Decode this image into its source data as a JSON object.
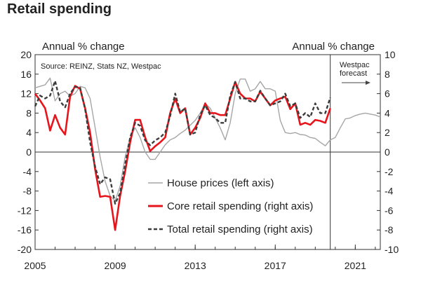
{
  "chart_data": {
    "type": "line",
    "title": "Retail spending",
    "left_axis_label": "Annual % change",
    "right_axis_label": "Annual % change",
    "source": "Source: REINZ, Stats NZ, Westpac",
    "forecast_label_line1": "Westpac",
    "forecast_label_line2": "forecast",
    "forecast_start": 2019.75,
    "xlim": [
      2005,
      2022.25
    ],
    "ylim_left": [
      -20,
      20
    ],
    "ylim_right": [
      -10,
      10
    ],
    "x_ticks": [
      2005,
      2009,
      2013,
      2017,
      2021
    ],
    "x_tick_labels": [
      "2005",
      "2009",
      "2013",
      "2017",
      "2021"
    ],
    "y_left_ticks": [
      -20,
      -16,
      -12,
      -8,
      -4,
      0,
      4,
      8,
      12,
      16,
      20
    ],
    "y_left_tick_labels": [
      "-20",
      "-16",
      "-12",
      "-8",
      "-4",
      "0",
      "4",
      "8",
      "12",
      "16",
      "20"
    ],
    "y_right_ticks": [
      -10,
      -8,
      -6,
      -4,
      -2,
      0,
      2,
      4,
      6,
      8,
      10
    ],
    "y_right_tick_labels": [
      "-10",
      "-8",
      "-6",
      "-4",
      "-2",
      "0",
      "2",
      "4",
      "6",
      "8",
      "10"
    ],
    "series": [
      {
        "name": "House prices (left axis)",
        "axis": "left",
        "color": "#a6a6a6",
        "style": "solid",
        "x": [
          2005.0,
          2005.25,
          2005.5,
          2005.75,
          2006.0,
          2006.25,
          2006.5,
          2006.75,
          2007.0,
          2007.25,
          2007.5,
          2007.75,
          2008.0,
          2008.25,
          2008.5,
          2008.75,
          2009.0,
          2009.25,
          2009.5,
          2009.75,
          2010.0,
          2010.25,
          2010.5,
          2010.75,
          2011.0,
          2011.25,
          2011.5,
          2011.75,
          2012.0,
          2012.25,
          2012.5,
          2012.75,
          2013.0,
          2013.25,
          2013.5,
          2013.75,
          2014.0,
          2014.25,
          2014.5,
          2014.75,
          2015.0,
          2015.25,
          2015.5,
          2015.75,
          2016.0,
          2016.25,
          2016.5,
          2016.75,
          2017.0,
          2017.25,
          2017.5,
          2017.75,
          2018.0,
          2018.25,
          2018.5,
          2018.75,
          2019.0,
          2019.25,
          2019.5,
          2019.75,
          2020.0,
          2020.25,
          2020.5,
          2020.75,
          2021.0,
          2021.25,
          2021.5,
          2021.75,
          2022.0,
          2022.25
        ],
        "values": [
          13.2,
          13.5,
          13.8,
          15.2,
          10.5,
          12,
          12.5,
          11.5,
          12,
          13.5,
          13.2,
          11,
          5,
          -1,
          -6,
          -9,
          -10,
          -7,
          -1,
          3,
          5,
          3,
          0,
          -1.5,
          -1.5,
          0,
          1.5,
          2.5,
          3,
          3.8,
          4.5,
          5.5,
          6.5,
          8,
          10,
          9,
          7,
          5,
          2.5,
          6,
          12,
          15,
          15,
          12.5,
          13,
          14.5,
          13,
          13,
          12.5,
          6.5,
          4,
          3.8,
          4,
          3.6,
          3.5,
          3,
          2.8,
          2,
          1.3,
          2.5,
          3,
          5,
          6.8,
          7,
          7.5,
          7.8,
          8,
          7.8,
          7.6,
          7.2
        ]
      },
      {
        "name": "Core retail spending (right axis)",
        "axis": "right",
        "color": "#e8141b",
        "style": "solid",
        "x": [
          2005.0,
          2005.25,
          2005.5,
          2005.75,
          2006.0,
          2006.25,
          2006.5,
          2006.75,
          2007.0,
          2007.25,
          2007.5,
          2007.75,
          2008.0,
          2008.25,
          2008.5,
          2008.75,
          2009.0,
          2009.25,
          2009.5,
          2009.75,
          2010.0,
          2010.25,
          2010.5,
          2010.75,
          2011.0,
          2011.25,
          2011.5,
          2011.75,
          2012.0,
          2012.25,
          2012.5,
          2012.75,
          2013.0,
          2013.25,
          2013.5,
          2013.75,
          2014.0,
          2014.25,
          2014.5,
          2014.75,
          2015.0,
          2015.25,
          2015.5,
          2015.75,
          2016.0,
          2016.25,
          2016.5,
          2016.75,
          2017.0,
          2017.25,
          2017.5,
          2017.75,
          2018.0,
          2018.25,
          2018.5,
          2018.75,
          2019.0,
          2019.25,
          2019.5,
          2019.75
        ],
        "values": [
          6,
          5.3,
          4.5,
          2.2,
          3.8,
          2.5,
          1.8,
          5.7,
          6.8,
          6.5,
          4.5,
          2,
          -1.8,
          -4.6,
          -4.5,
          -4.6,
          -8,
          -4.5,
          -2,
          1,
          3.3,
          3.3,
          1.5,
          0.1,
          0.6,
          1,
          1.5,
          4,
          5.5,
          4,
          4.5,
          1.8,
          2.5,
          3.5,
          5,
          4,
          4,
          3.8,
          3.8,
          5.5,
          7.2,
          6,
          5.5,
          5.5,
          5.2,
          6.2,
          5.5,
          4.8,
          5.3,
          5.5,
          5.7,
          4.4,
          5,
          2.8,
          3,
          2.8,
          3.3,
          3.2,
          3,
          4.5
        ]
      },
      {
        "name": "Total retail spending (right axis)",
        "axis": "right",
        "color": "#3c3c3c",
        "style": "dashed",
        "x": [
          2005.0,
          2005.25,
          2005.5,
          2005.75,
          2006.0,
          2006.25,
          2006.5,
          2006.75,
          2007.0,
          2007.25,
          2007.5,
          2007.75,
          2008.0,
          2008.25,
          2008.5,
          2008.75,
          2009.0,
          2009.25,
          2009.5,
          2009.75,
          2010.0,
          2010.25,
          2010.5,
          2010.75,
          2011.0,
          2011.25,
          2011.5,
          2011.75,
          2012.0,
          2012.25,
          2012.5,
          2012.75,
          2013.0,
          2013.25,
          2013.5,
          2013.75,
          2014.0,
          2014.25,
          2014.5,
          2014.75,
          2015.0,
          2015.25,
          2015.5,
          2015.75,
          2016.0,
          2016.25,
          2016.5,
          2016.75,
          2017.0,
          2017.25,
          2017.5,
          2017.75,
          2018.0,
          2018.25,
          2018.5,
          2018.75,
          2019.0,
          2019.25,
          2019.5,
          2019.75
        ],
        "values": [
          4.7,
          5.8,
          5.5,
          5.8,
          7.3,
          5.2,
          4.6,
          6,
          6.7,
          6.6,
          4.4,
          1,
          -1.5,
          -3.3,
          -2.6,
          -2.8,
          -5.3,
          -4.2,
          -1.3,
          1.5,
          3,
          2.7,
          1.2,
          0.7,
          1.2,
          1.5,
          2,
          3.7,
          6,
          4.1,
          4.5,
          1.8,
          2,
          3.8,
          4.8,
          3.8,
          3.5,
          3,
          3,
          5.8,
          7.2,
          5.5,
          5.5,
          5.2,
          5.2,
          6.3,
          5.5,
          4.8,
          5,
          5.2,
          6,
          4.7,
          5,
          3.5,
          4,
          3.6,
          5,
          4,
          4,
          5.6
        ]
      }
    ],
    "legend": [
      "House prices (left axis)",
      "Core retail spending (right axis)",
      "Total retail spending (right axis)"
    ],
    "grid": false
  }
}
